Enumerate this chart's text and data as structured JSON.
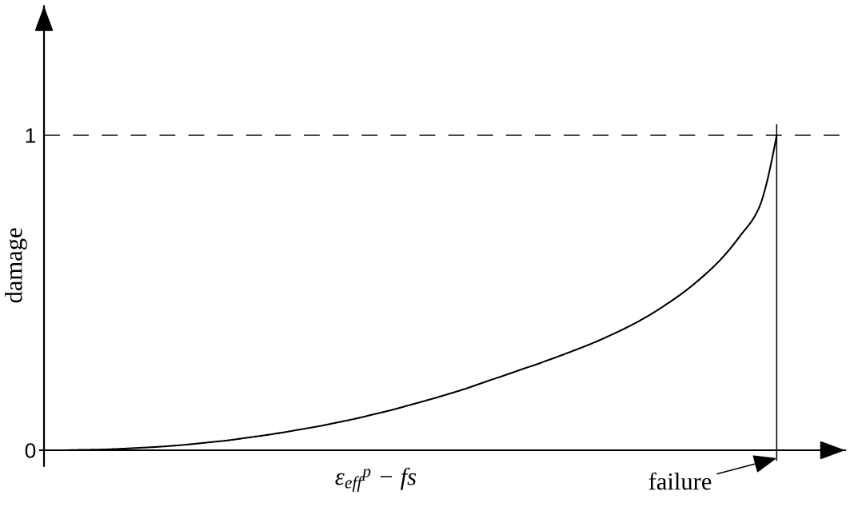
{
  "chart_data": {
    "type": "line",
    "xlabel": "ε$_{eff}$$^{p}$ − fs",
    "ylabel": "damage",
    "categories": [
      null,
      null,
      null,
      null,
      null,
      null,
      null,
      null,
      null,
      null,
      null,
      null,
      null,
      null,
      null,
      null,
      null,
      null,
      null,
      null,
      null,
      null,
      null,
      null,
      null,
      null,
      null,
      null,
      null,
      null,
      null,
      null,
      null,
      null,
      null,
      null,
      null,
      null,
      null,
      null,
      null
    ],
    "values": [
      0,
      0,
      0.001,
      0.002,
      0.004,
      0.007,
      0.01,
      0.014,
      0.019,
      0.025,
      0.031,
      0.039,
      0.047,
      0.056,
      0.066,
      0.076,
      0.088,
      0.1,
      0.114,
      0.128,
      0.144,
      0.16,
      0.177,
      0.195,
      0.215,
      0.235,
      0.255,
      0.275,
      0.296,
      0.318,
      0.341,
      0.367,
      0.395,
      0.427,
      0.464,
      0.505,
      0.553,
      0.609,
      0.68,
      0.765,
      1.0
    ],
    "color": "#000000",
    "ylim": [
      -0.05,
      1.41
    ],
    "yticks": [
      0,
      1
    ],
    "ref_lines": [
      {
        "axis": "y",
        "value": 1,
        "color": "#444444",
        "line_style": "dashed"
      }
    ],
    "annotations": [
      "failure"
    ]
  }
}
